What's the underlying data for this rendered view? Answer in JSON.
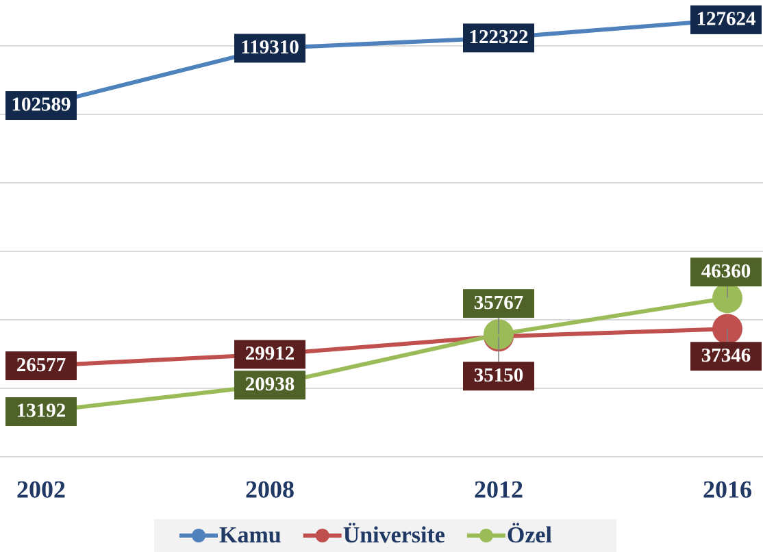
{
  "chart_data": {
    "type": "line",
    "categories": [
      "2002",
      "2008",
      "2012",
      "2016"
    ],
    "series": [
      {
        "name": "Kamu",
        "color": "#4f81bd",
        "label_color": "#13294b",
        "values": [
          102589,
          119310,
          122322,
          127624
        ]
      },
      {
        "name": "Üniversite",
        "color": "#c0504d",
        "label_color": "#5c1f1f",
        "values": [
          26577,
          29912,
          35150,
          37346
        ]
      },
      {
        "name": "Özel",
        "color": "#9bbb59",
        "label_color": "#4f6228",
        "values": [
          13192,
          20938,
          35767,
          46360
        ]
      }
    ],
    "ylim": [
      0,
      133400
    ],
    "yticks": [
      0,
      20000,
      40000,
      60000,
      80000,
      100000,
      120000
    ],
    "grid": true,
    "legend": "bottom"
  }
}
